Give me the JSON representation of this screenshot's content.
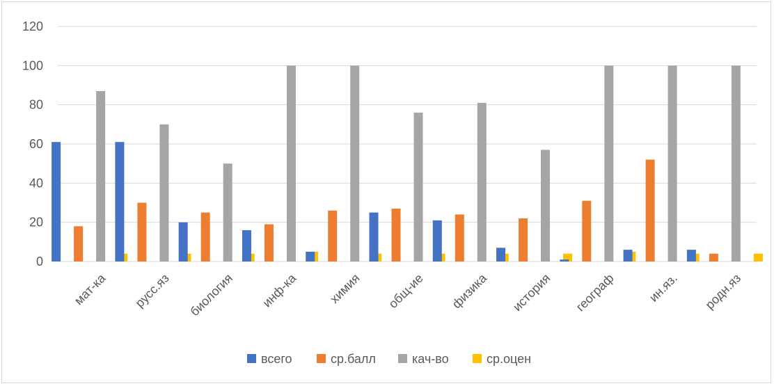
{
  "chart_data": {
    "type": "bar",
    "title": "",
    "xlabel": "",
    "ylabel": "",
    "ylim": [
      0,
      120
    ],
    "yticks": [
      0,
      20,
      40,
      60,
      80,
      100,
      120
    ],
    "grid": true,
    "legend": "bottom",
    "categories": [
      "мат-ка",
      "русс.яз",
      "биология",
      "инф-ка",
      "химия",
      "общ-ие",
      "физика",
      "история",
      "географ",
      "ин.яз.",
      "родн.яз"
    ],
    "series": [
      {
        "name": "всего",
        "color": "#4472c4",
        "values": [
          61,
          61,
          20,
          16,
          5,
          25,
          21,
          7,
          1,
          6,
          6
        ]
      },
      {
        "name": "ср.балл",
        "color": "#ed7d31",
        "values": [
          18,
          30,
          25,
          19,
          26,
          27,
          24,
          22,
          31,
          52,
          4
        ]
      },
      {
        "name": "кач-во",
        "color": "#a5a5a5",
        "values": [
          87,
          70,
          50,
          100,
          100,
          76,
          81,
          57,
          100,
          100,
          100
        ]
      },
      {
        "name": "ср.оцен",
        "color": "#ffc000",
        "values": [
          4,
          4,
          4,
          5,
          4,
          4,
          4,
          4,
          5,
          4,
          4
        ]
      }
    ]
  }
}
